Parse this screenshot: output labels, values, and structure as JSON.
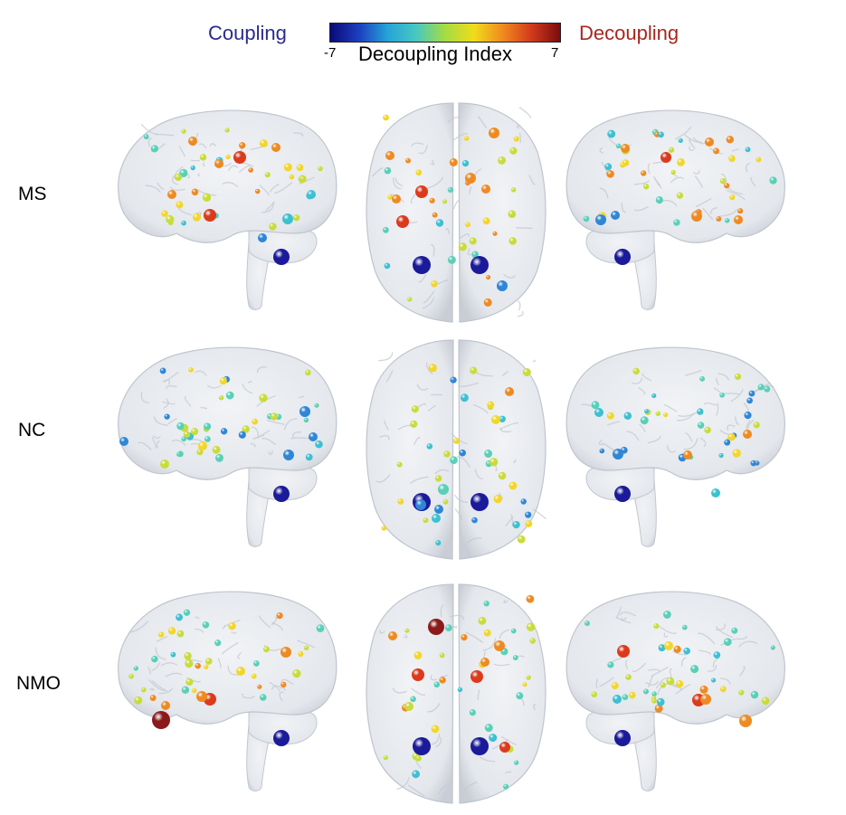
{
  "legend": {
    "left_label": "Coupling",
    "right_label": "Decoupling",
    "title": "Decoupling Index",
    "min_label": "-7",
    "max_label": "7",
    "left_color": "#2b2b8c",
    "right_color": "#a8281e",
    "gradient": [
      "#0a0a78",
      "#1c3fbf",
      "#25a4d8",
      "#48c8c0",
      "#a6dc40",
      "#f0dc1a",
      "#f08a1e",
      "#d23a1c",
      "#7a0d0d"
    ]
  },
  "rows": [
    {
      "label": "MS"
    },
    {
      "label": "NC"
    },
    {
      "label": "NMO"
    }
  ],
  "views": [
    "left-lateral",
    "dorsal",
    "right-lateral"
  ],
  "colors": {
    "deep_blue": "#1a1a9a",
    "blue": "#2f86d6",
    "cyan": "#3cc0d2",
    "teal": "#58d0b8",
    "yellow_green": "#c8dc3a",
    "yellow": "#f2d62a",
    "orange": "#ee8a22",
    "red": "#dc3a1c",
    "dark_red": "#8c1a1a",
    "brain": "#e4e7ec"
  }
}
